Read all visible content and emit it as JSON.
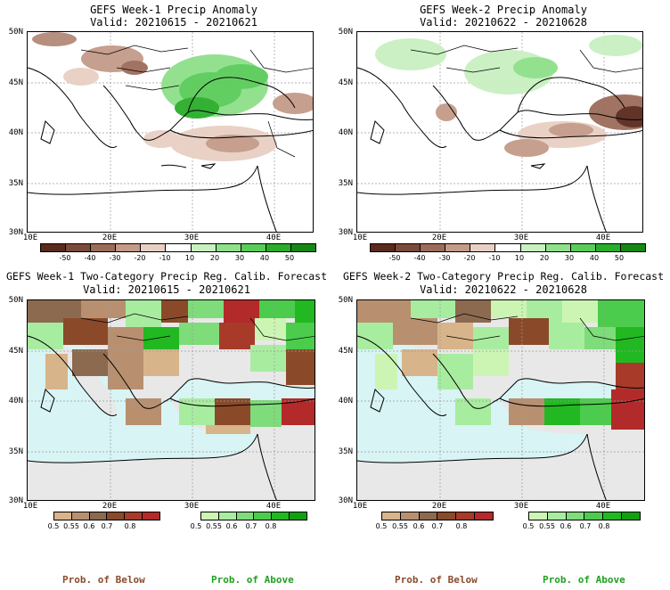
{
  "panels": [
    {
      "id": "w1-anom",
      "title_line1": "GEFS Week-1 Precip Anomaly",
      "title_line2": "Valid: 20210615 - 20210621",
      "lat_labels": [
        "50N",
        "45N",
        "40N",
        "35N",
        "30N"
      ],
      "lon_labels": [
        "10E",
        "20E",
        "30E",
        "40E"
      ]
    },
    {
      "id": "w2-anom",
      "title_line1": "GEFS Week-2 Precip Anomaly",
      "title_line2": "Valid: 20210622 - 20210628",
      "lat_labels": [
        "50N",
        "45N",
        "40N",
        "35N",
        "30N"
      ],
      "lon_labels": [
        "10E",
        "20E",
        "30E",
        "40E"
      ]
    },
    {
      "id": "w1-prob",
      "title_line1": "GEFS Week-1 Two-Category Precip Reg. Calib. Forecast",
      "title_line2": "Valid: 20210615 - 20210621",
      "lat_labels": [
        "50N",
        "45N",
        "40N",
        "35N",
        "30N"
      ],
      "lon_labels": [
        "10E",
        "20E",
        "30E",
        "40E"
      ]
    },
    {
      "id": "w2-prob",
      "title_line1": "GEFS Week-2 Two-Category Precip Reg. Calib. Forecast",
      "title_line2": "Valid: 20210622 - 20210628",
      "lat_labels": [
        "50N",
        "45N",
        "40N",
        "35N",
        "30N"
      ],
      "lon_labels": [
        "10E",
        "20E",
        "30E",
        "40E"
      ]
    }
  ],
  "anomaly_colorbar": {
    "labels": [
      "-50",
      "-40",
      "-30",
      "-20",
      "-10",
      "10",
      "20",
      "30",
      "40",
      "50"
    ],
    "colors": [
      "#5a2a1e",
      "#7a4a3a",
      "#9c6c5a",
      "#c49a88",
      "#e8cfc4",
      "#ffffff",
      "#c8f0c0",
      "#8ee08a",
      "#5acc5a",
      "#2aad2a",
      "#168816"
    ]
  },
  "below_colorbar": {
    "labels": [
      "0.5",
      "0.55",
      "0.6",
      "0.7",
      "0.8"
    ],
    "colors": [
      "#d8b48a",
      "#b89070",
      "#8c6a50",
      "#8a4a2a",
      "#a83a2a",
      "#b22a2a"
    ]
  },
  "above_colorbar": {
    "labels": [
      "0.5",
      "0.55",
      "0.6",
      "0.7",
      "0.8"
    ],
    "colors": [
      "#ccf5b4",
      "#a8eca0",
      "#7edc7a",
      "#4ccc4c",
      "#22b822",
      "#10a010"
    ]
  },
  "prob_of_below": "Prob. of Below",
  "prob_of_above": "Prob. of Above",
  "colors": {
    "below_text": "#8a4a2a",
    "above_text": "#20a020",
    "sea_prob": "#d8f4f4",
    "land_prob": "#e8e8e8"
  }
}
